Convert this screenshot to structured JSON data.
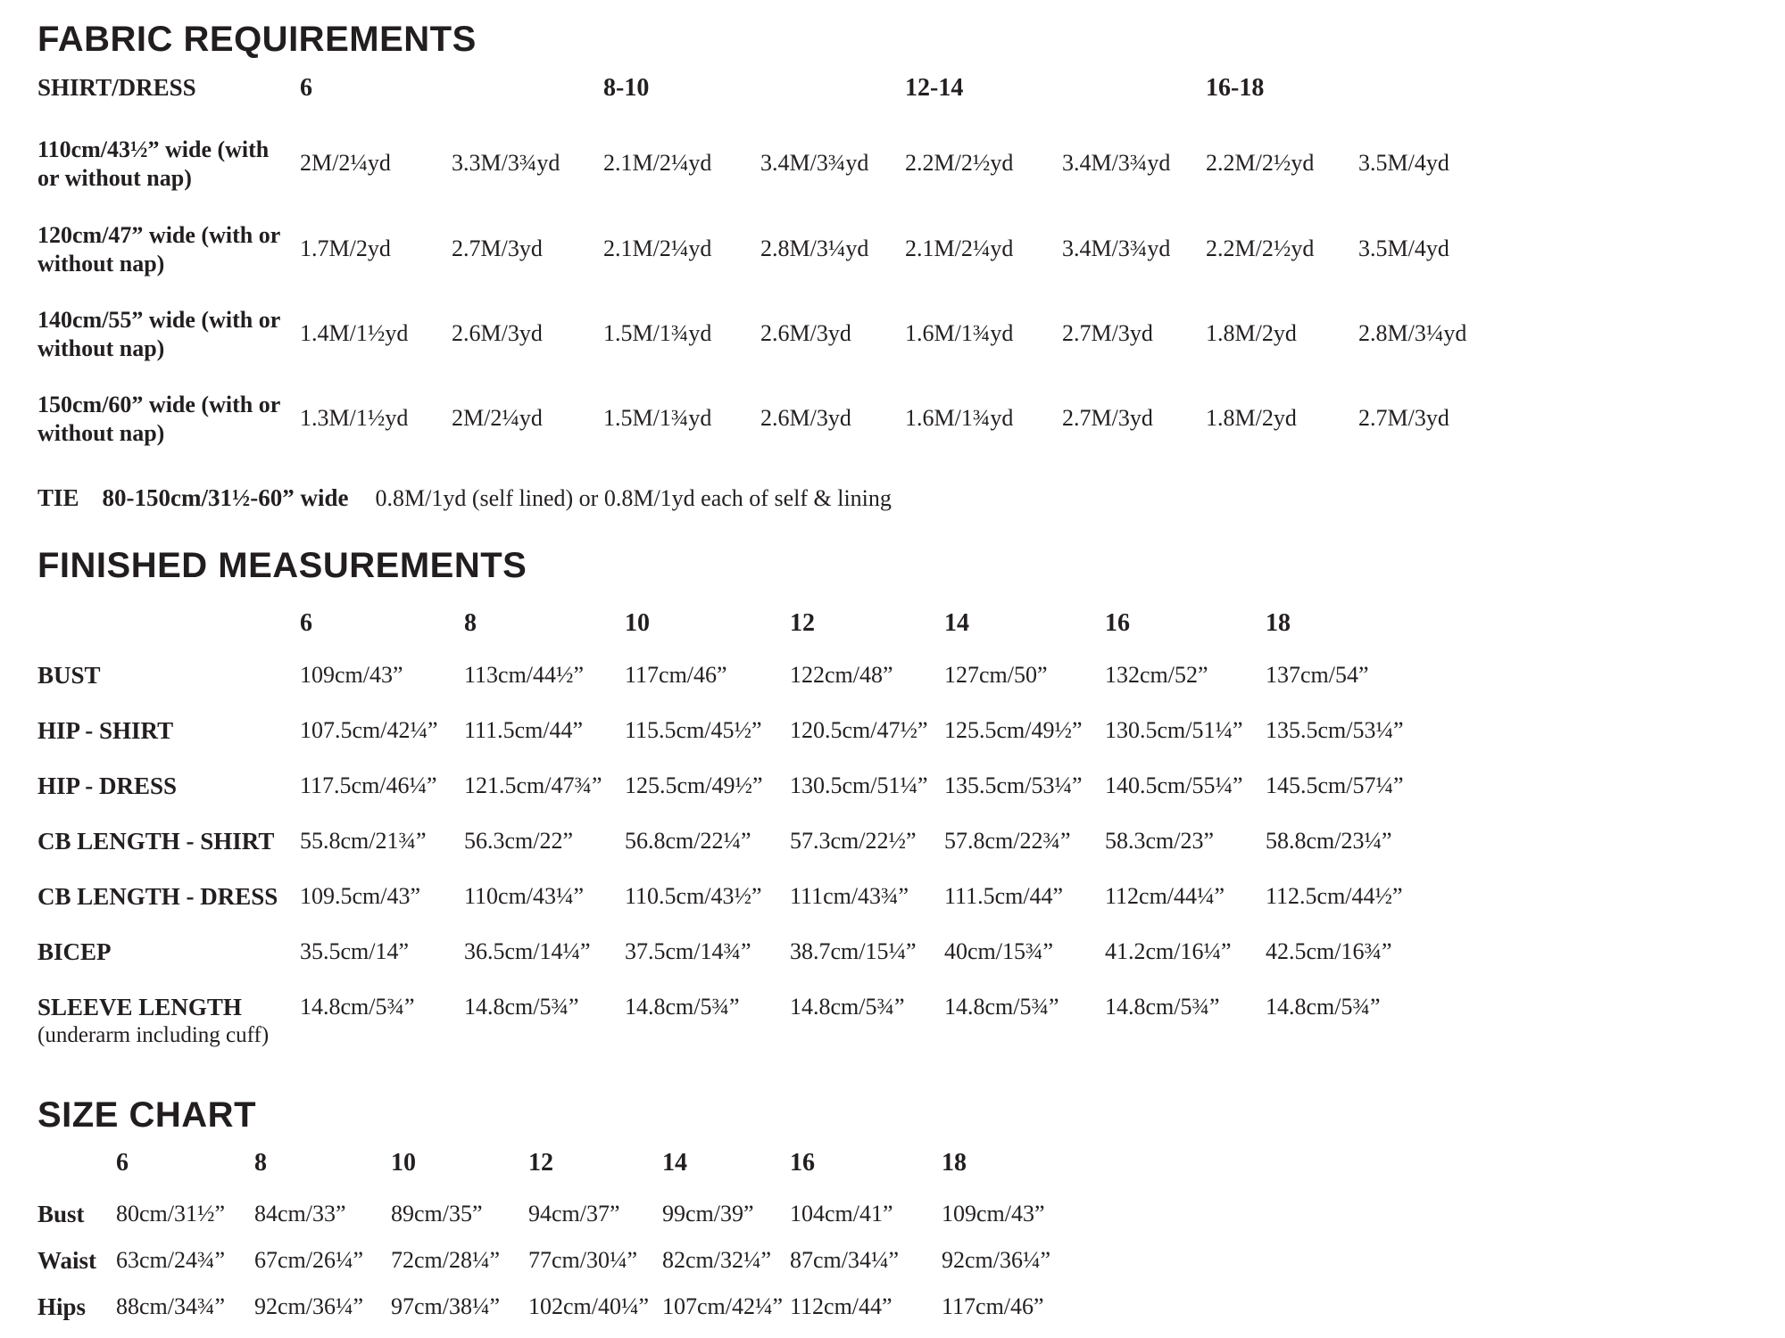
{
  "document": {
    "background": "#ffffff",
    "text_color": "#231f20"
  },
  "fabric_requirements": {
    "title": "FABRIC REQUIREMENTS",
    "corner_label": "SHIRT/DRESS",
    "size_groups": [
      "6",
      "8-10",
      "12-14",
      "16-18"
    ],
    "rows": [
      {
        "label_lines": [
          "110cm/43½” wide (with",
          "or without nap)"
        ],
        "values": [
          "2M/2¼yd",
          "3.3M/3¾yd",
          "2.1M/2¼yd",
          "3.4M/3¾yd",
          "2.2M/2½yd",
          "3.4M/3¾yd",
          "2.2M/2½yd",
          "3.5M/4yd"
        ]
      },
      {
        "label_lines": [
          "120cm/47” wide (with or",
          "without nap)"
        ],
        "values": [
          "1.7M/2yd",
          "2.7M/3yd",
          "2.1M/2¼yd",
          "2.8M/3¼yd",
          "2.1M/2¼yd",
          "3.4M/3¾yd",
          "2.2M/2½yd",
          "3.5M/4yd"
        ]
      },
      {
        "label_lines": [
          "140cm/55” wide (with or",
          "without nap)"
        ],
        "values": [
          "1.4M/1½yd",
          "2.6M/3yd",
          "1.5M/1¾yd",
          "2.6M/3yd",
          "1.6M/1¾yd",
          "2.7M/3yd",
          "1.8M/2yd",
          "2.8M/3¼yd"
        ]
      },
      {
        "label_lines": [
          "150cm/60” wide (with or",
          "without nap)"
        ],
        "values": [
          "1.3M/1½yd",
          "2M/2¼yd",
          "1.5M/1¾yd",
          "2.6M/3yd",
          "1.6M/1¾yd",
          "2.7M/3yd",
          "1.8M/2yd",
          "2.7M/3yd"
        ]
      }
    ],
    "tie": {
      "label": "TIE",
      "width": "80-150cm/31½-60” wide",
      "yardage": "0.8M/1yd (self lined) or 0.8M/1yd each of self & lining"
    }
  },
  "finished_measurements": {
    "title": "FINISHED MEASUREMENTS",
    "sizes": [
      "6",
      "8",
      "10",
      "12",
      "14",
      "16",
      "18"
    ],
    "rows": [
      {
        "label": "BUST",
        "values": [
          "109cm/43”",
          "113cm/44½”",
          "117cm/46”",
          "122cm/48”",
          "127cm/50”",
          "132cm/52”",
          "137cm/54”"
        ]
      },
      {
        "label": "HIP - SHIRT",
        "values": [
          "107.5cm/42¼”",
          "111.5cm/44”",
          "115.5cm/45½”",
          "120.5cm/47½”",
          "125.5cm/49½”",
          "130.5cm/51¼”",
          "135.5cm/53¼”"
        ]
      },
      {
        "label": "HIP - DRESS",
        "values": [
          "117.5cm/46¼”",
          "121.5cm/47¾”",
          "125.5cm/49½”",
          "130.5cm/51¼”",
          "135.5cm/53¼”",
          "140.5cm/55¼”",
          "145.5cm/57¼”"
        ]
      },
      {
        "label": "CB LENGTH - SHIRT",
        "values": [
          "55.8cm/21¾”",
          "56.3cm/22”",
          "56.8cm/22¼”",
          "57.3cm/22½”",
          "57.8cm/22¾”",
          "58.3cm/23”",
          "58.8cm/23¼”"
        ]
      },
      {
        "label": "CB LENGTH - DRESS",
        "values": [
          "109.5cm/43”",
          "110cm/43¼”",
          "110.5cm/43½”",
          "111cm/43¾”",
          "111.5cm/44”",
          "112cm/44¼”",
          "112.5cm/44½”"
        ]
      },
      {
        "label": "BICEP",
        "values": [
          "35.5cm/14”",
          "36.5cm/14¼”",
          "37.5cm/14¾”",
          "38.7cm/15¼”",
          "40cm/15¾”",
          "41.2cm/16¼”",
          "42.5cm/16¾”"
        ]
      },
      {
        "label": "SLEEVE LENGTH",
        "sublabel": "(underarm including cuff)",
        "values": [
          "14.8cm/5¾”",
          "14.8cm/5¾”",
          "14.8cm/5¾”",
          "14.8cm/5¾”",
          "14.8cm/5¾”",
          "14.8cm/5¾”",
          "14.8cm/5¾”"
        ]
      }
    ]
  },
  "size_chart": {
    "title": "SIZE CHART",
    "sizes": [
      "6",
      "8",
      "10",
      "12",
      "14",
      "16",
      "18"
    ],
    "rows": [
      {
        "label": "Bust",
        "values": [
          "80cm/31½”",
          "84cm/33”",
          "89cm/35”",
          "94cm/37”",
          "99cm/39”",
          "104cm/41”",
          "109cm/43”"
        ]
      },
      {
        "label": "Waist",
        "values": [
          "63cm/24¾”",
          "67cm/26¼”",
          "72cm/28¼”",
          "77cm/30¼”",
          "82cm/32¼”",
          "87cm/34¼”",
          "92cm/36¼”"
        ]
      },
      {
        "label": "Hips",
        "values": [
          "88cm/34¾”",
          "92cm/36¼”",
          "97cm/38¼”",
          "102cm/40¼”",
          "107cm/42¼”",
          "112cm/44”",
          "117cm/46”"
        ]
      }
    ]
  }
}
